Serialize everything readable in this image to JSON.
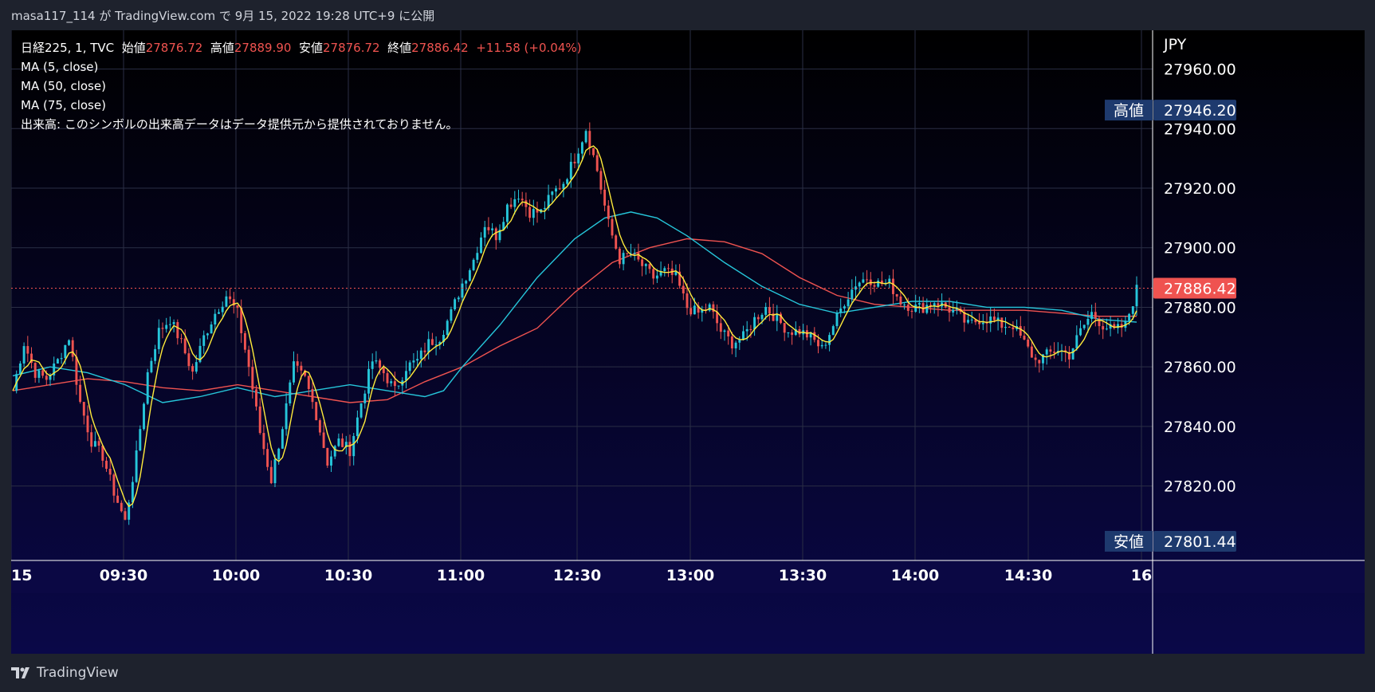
{
  "header": {
    "text": "masa117_114 が TradingView.com で 9月 15, 2022 19:28 UTC+9 に公開"
  },
  "legend": {
    "symbol": "日経225, 1, TVC",
    "open_label": "始値",
    "open": "27876.72",
    "high_label": "高値",
    "high": "27889.90",
    "low_label": "安値",
    "low": "27876.72",
    "close_label": "終値",
    "close": "27886.42",
    "change": "+11.58 (+0.04%)",
    "ma1": "MA (5, close)",
    "ma2": "MA (50, close)",
    "ma3": "MA (75, close)",
    "volume_note": "出来高: このシンボルの出来高データはデータ提供元から提供されておりません。"
  },
  "footer": {
    "brand": "TradingView"
  },
  "colors": {
    "up": "#26c6da",
    "down": "#ef5350",
    "ma5": "#ffeb3b",
    "ma50": "#26c6da",
    "ma75": "#ef5350",
    "label_bg": "#1e3a6e",
    "last_price_bg": "#ef5350"
  },
  "chart_data": {
    "type": "candlestick",
    "currency": "JPY",
    "y_ticks": [
      "27960.00",
      "27940.00",
      "27920.00",
      "27900.00",
      "27880.00",
      "27860.00",
      "27840.00",
      "27820.00"
    ],
    "y_tick_values": [
      27960,
      27940,
      27920,
      27900,
      27880,
      27860,
      27840,
      27820
    ],
    "ylim": [
      27795,
      27973
    ],
    "x_labels": [
      "15",
      "09:30",
      "10:00",
      "10:30",
      "11:00",
      "12:30",
      "13:00",
      "13:30",
      "14:00",
      "14:30",
      "16"
    ],
    "high_marker": {
      "label": "高値",
      "value": 27946.2,
      "text": "27946.20"
    },
    "low_marker": {
      "label": "安値",
      "value": 27801.44,
      "text": "27801.44"
    },
    "last_price": {
      "value": 27886.42,
      "text": "27886.42"
    },
    "series": [
      {
        "name": "MA (5, close)"
      },
      {
        "name": "MA (50, close)"
      },
      {
        "name": "MA (75, close)"
      }
    ],
    "close_path": [
      [
        0,
        27852
      ],
      [
        3,
        27868
      ],
      [
        6,
        27858
      ],
      [
        9,
        27856
      ],
      [
        12,
        27862
      ],
      [
        15,
        27870
      ],
      [
        18,
        27848
      ],
      [
        21,
        27835
      ],
      [
        24,
        27830
      ],
      [
        27,
        27818
      ],
      [
        30,
        27808
      ],
      [
        33,
        27830
      ],
      [
        36,
        27858
      ],
      [
        39,
        27872
      ],
      [
        42,
        27876
      ],
      [
        45,
        27868
      ],
      [
        48,
        27858
      ],
      [
        51,
        27870
      ],
      [
        54,
        27878
      ],
      [
        57,
        27884
      ],
      [
        60,
        27878
      ],
      [
        63,
        27860
      ],
      [
        66,
        27838
      ],
      [
        69,
        27822
      ],
      [
        72,
        27840
      ],
      [
        75,
        27860
      ],
      [
        78,
        27856
      ],
      [
        81,
        27844
      ],
      [
        84,
        27828
      ],
      [
        87,
        27835
      ],
      [
        90,
        27832
      ],
      [
        93,
        27848
      ],
      [
        96,
        27862
      ],
      [
        99,
        27858
      ],
      [
        102,
        27852
      ],
      [
        105,
        27860
      ],
      [
        108,
        27862
      ],
      [
        111,
        27868
      ],
      [
        114,
        27870
      ],
      [
        117,
        27878
      ],
      [
        120,
        27888
      ],
      [
        123,
        27896
      ],
      [
        126,
        27908
      ],
      [
        129,
        27904
      ],
      [
        132,
        27914
      ],
      [
        135,
        27918
      ],
      [
        138,
        27912
      ],
      [
        141,
        27912
      ],
      [
        144,
        27918
      ],
      [
        147,
        27922
      ],
      [
        150,
        27930
      ],
      [
        153,
        27940
      ],
      [
        156,
        27926
      ],
      [
        159,
        27908
      ],
      [
        162,
        27896
      ],
      [
        165,
        27898
      ],
      [
        168,
        27894
      ],
      [
        171,
        27890
      ],
      [
        174,
        27892
      ],
      [
        177,
        27890
      ],
      [
        180,
        27880
      ],
      [
        183,
        27878
      ],
      [
        186,
        27880
      ],
      [
        189,
        27872
      ],
      [
        192,
        27868
      ],
      [
        195,
        27870
      ],
      [
        198,
        27876
      ],
      [
        201,
        27880
      ],
      [
        204,
        27876
      ],
      [
        207,
        27872
      ],
      [
        210,
        27872
      ],
      [
        213,
        27870
      ],
      [
        216,
        27866
      ],
      [
        219,
        27874
      ],
      [
        222,
        27882
      ],
      [
        225,
        27888
      ],
      [
        228,
        27890
      ],
      [
        231,
        27888
      ],
      [
        234,
        27888
      ],
      [
        237,
        27882
      ],
      [
        240,
        27880
      ],
      [
        243,
        27880
      ],
      [
        246,
        27882
      ],
      [
        249,
        27880
      ],
      [
        252,
        27878
      ],
      [
        255,
        27874
      ],
      [
        258,
        27876
      ],
      [
        261,
        27876
      ],
      [
        264,
        27874
      ],
      [
        267,
        27874
      ],
      [
        270,
        27868
      ],
      [
        273,
        27862
      ],
      [
        276,
        27864
      ],
      [
        279,
        27866
      ],
      [
        282,
        27864
      ],
      [
        285,
        27872
      ],
      [
        288,
        27878
      ],
      [
        291,
        27874
      ],
      [
        294,
        27872
      ],
      [
        297,
        27874
      ],
      [
        300,
        27886
      ]
    ],
    "ma50_path": [
      [
        0,
        27857
      ],
      [
        10,
        27860
      ],
      [
        20,
        27858
      ],
      [
        30,
        27854
      ],
      [
        40,
        27848
      ],
      [
        50,
        27850
      ],
      [
        60,
        27853
      ],
      [
        70,
        27850
      ],
      [
        80,
        27852
      ],
      [
        90,
        27854
      ],
      [
        100,
        27852
      ],
      [
        110,
        27850
      ],
      [
        115,
        27852
      ],
      [
        120,
        27860
      ],
      [
        130,
        27874
      ],
      [
        140,
        27890
      ],
      [
        150,
        27903
      ],
      [
        158,
        27910
      ],
      [
        165,
        27912
      ],
      [
        172,
        27910
      ],
      [
        180,
        27904
      ],
      [
        190,
        27895
      ],
      [
        200,
        27887
      ],
      [
        210,
        27881
      ],
      [
        220,
        27878
      ],
      [
        230,
        27880
      ],
      [
        240,
        27882
      ],
      [
        250,
        27882
      ],
      [
        260,
        27880
      ],
      [
        270,
        27880
      ],
      [
        280,
        27879
      ],
      [
        290,
        27876
      ],
      [
        300,
        27875
      ]
    ],
    "ma75_path": [
      [
        0,
        27852
      ],
      [
        10,
        27854
      ],
      [
        20,
        27856
      ],
      [
        30,
        27855
      ],
      [
        40,
        27853
      ],
      [
        50,
        27852
      ],
      [
        60,
        27854
      ],
      [
        70,
        27852
      ],
      [
        80,
        27850
      ],
      [
        90,
        27848
      ],
      [
        100,
        27849
      ],
      [
        110,
        27855
      ],
      [
        120,
        27860
      ],
      [
        130,
        27867
      ],
      [
        140,
        27873
      ],
      [
        150,
        27885
      ],
      [
        160,
        27895
      ],
      [
        170,
        27900
      ],
      [
        180,
        27903
      ],
      [
        190,
        27902
      ],
      [
        200,
        27898
      ],
      [
        210,
        27890
      ],
      [
        220,
        27884
      ],
      [
        230,
        27881
      ],
      [
        240,
        27880
      ],
      [
        250,
        27879
      ],
      [
        260,
        27879
      ],
      [
        270,
        27879
      ],
      [
        280,
        27878
      ],
      [
        290,
        27877
      ],
      [
        300,
        27877
      ]
    ]
  }
}
